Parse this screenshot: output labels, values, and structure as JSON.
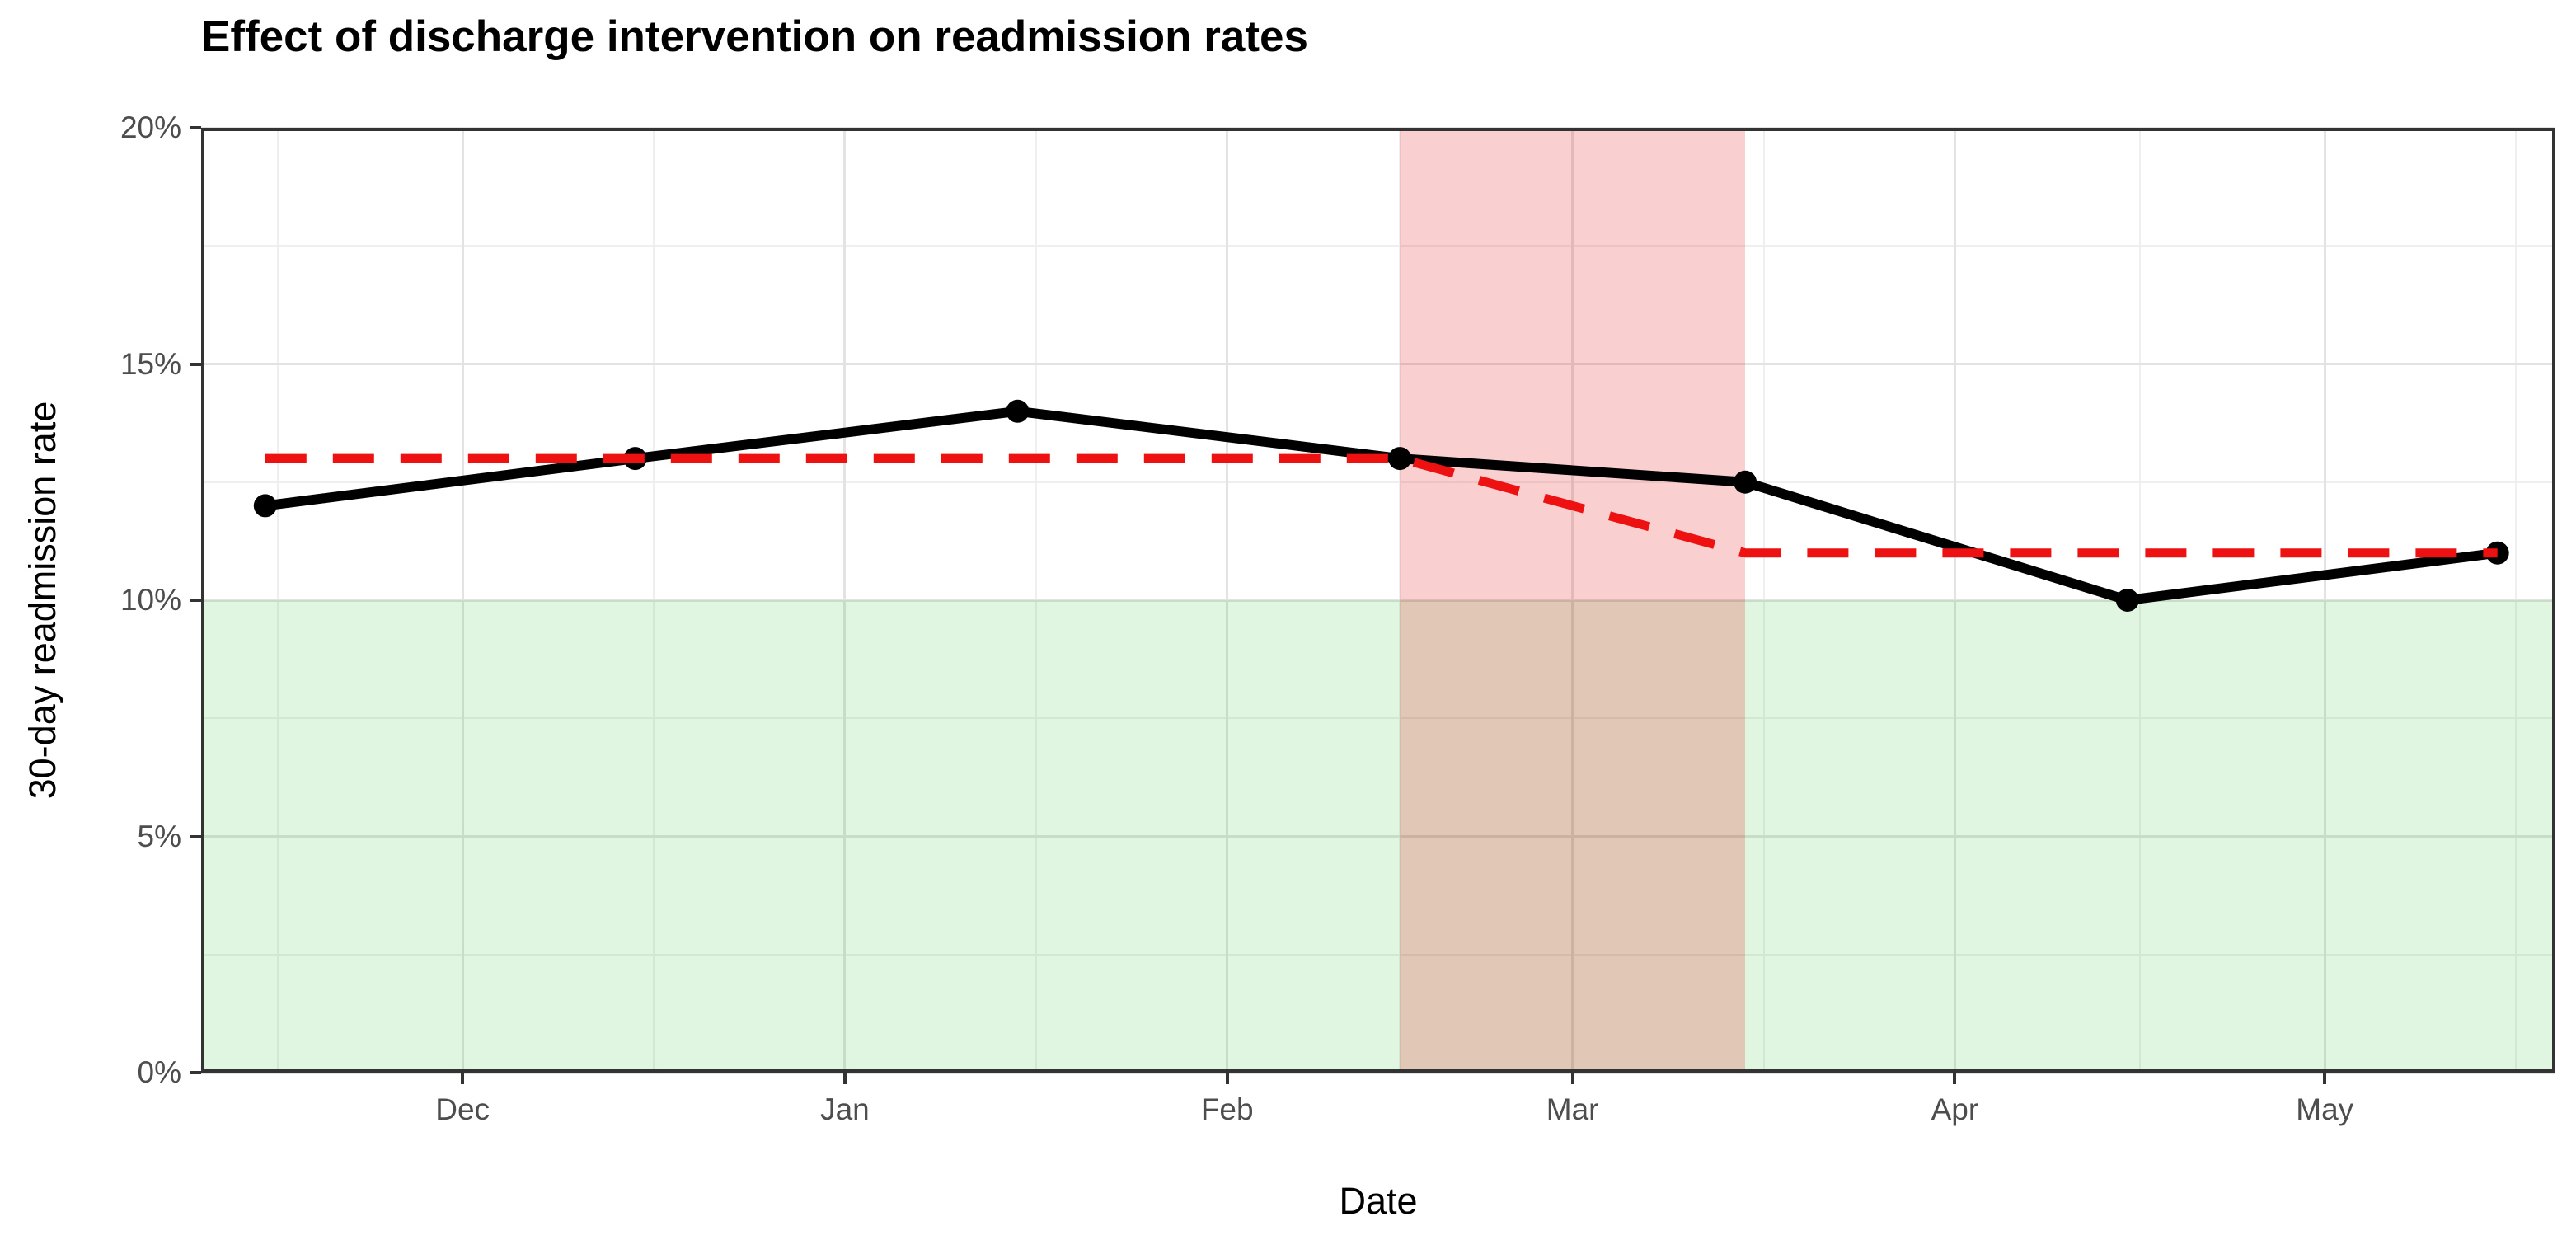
{
  "figure": {
    "title": "Effect of discharge intervention on readmission rates",
    "x_axis_title": "Date",
    "y_axis_title": "30-day readmission rate"
  },
  "chart_data": {
    "type": "line",
    "title": "Effect of discharge intervention on readmission rates",
    "xlabel": "Date",
    "ylabel": "30-day readmission rate",
    "ylim": [
      0,
      20
    ],
    "y_unit": "%",
    "x_domain_days": [
      -5.2,
      185.7
    ],
    "x_day_zero_label": "Nov 15",
    "grid": true,
    "legend": "none",
    "y_ticks": [
      {
        "value": 20,
        "label": "20%"
      },
      {
        "value": 15,
        "label": "15%"
      },
      {
        "value": 10,
        "label": "10%"
      },
      {
        "value": 5,
        "label": "5%"
      },
      {
        "value": 0,
        "label": "0%"
      }
    ],
    "y_minor_values": [
      17.5,
      12.5,
      7.5,
      2.5
    ],
    "x_ticks": [
      {
        "day": 16,
        "label": "Dec"
      },
      {
        "day": 47,
        "label": "Jan"
      },
      {
        "day": 78,
        "label": "Feb"
      },
      {
        "day": 106,
        "label": "Mar"
      },
      {
        "day": 137,
        "label": "Apr"
      },
      {
        "day": 167,
        "label": "May"
      }
    ],
    "x_minor_days": [
      1,
      31.5,
      62.5,
      92,
      121.5,
      152,
      182.5
    ],
    "series": [
      {
        "id": "observed-rate-solid-black",
        "color": "#000000",
        "stroke_width": 12,
        "dash": null,
        "markers": true,
        "marker_radius": 14,
        "points": [
          {
            "date": "Nov 15",
            "day": 0,
            "value": 12
          },
          {
            "date": "Dec 15",
            "day": 30,
            "value": 13
          },
          {
            "date": "Jan 15",
            "day": 61,
            "value": 14
          },
          {
            "date": "Feb 15",
            "day": 92,
            "value": 13
          },
          {
            "date": "Mar 15",
            "day": 120,
            "value": 12.5
          },
          {
            "date": "Apr 15",
            "day": 151,
            "value": 10
          },
          {
            "date": "May 15",
            "day": 181,
            "value": 11
          }
        ]
      },
      {
        "id": "reference-dashed-red",
        "color": "#ee1111",
        "stroke_width": 11,
        "dash": "50 32",
        "markers": false,
        "marker_radius": 0,
        "points": [
          {
            "date": "Nov 15",
            "day": 0,
            "value": 13
          },
          {
            "date": "Feb 15",
            "day": 92,
            "value": 13
          },
          {
            "date": "Mar 15",
            "day": 120,
            "value": 11
          },
          {
            "date": "May 15",
            "day": 181,
            "value": 11
          }
        ]
      }
    ],
    "shaded_regions": [
      {
        "id": "green-zone-below-10pct",
        "axis": "y",
        "from": 0,
        "to": 10,
        "fill": "rgba(0,180,0,0.12)"
      },
      {
        "id": "red-band-feb15-mar15",
        "axis": "x",
        "from_day": 92,
        "to_day": 120,
        "from_label": "Feb 15",
        "to_label": "Mar 15",
        "fill": "rgba(230,0,0,0.19)"
      }
    ],
    "style": {
      "panel_border_color": "#333333",
      "major_grid_color": "#e3e3e3",
      "minor_grid_color": "#efefef",
      "tick_color": "#333333",
      "tick_label_color": "#4d4d4d"
    }
  }
}
